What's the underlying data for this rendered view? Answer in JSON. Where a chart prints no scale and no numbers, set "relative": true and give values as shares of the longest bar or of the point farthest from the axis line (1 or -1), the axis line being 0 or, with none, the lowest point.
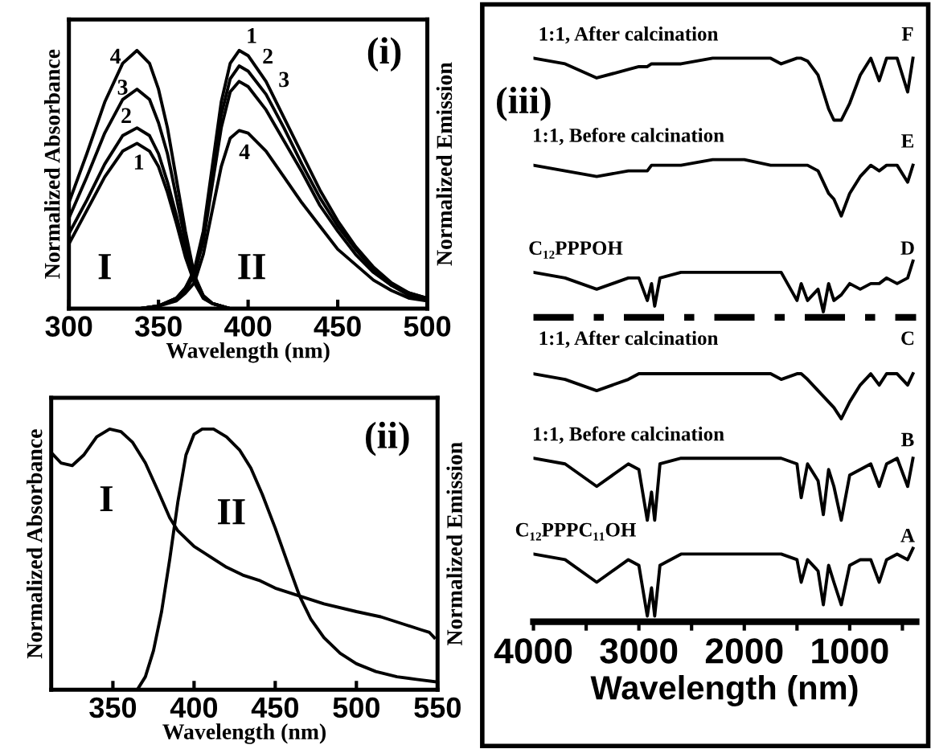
{
  "chart_data": [
    {
      "type": "line",
      "title": "(i)",
      "xlabel": "Wavelength (nm)",
      "ylabel": "Normalized Absorbance",
      "y2label": "Normalized Emission",
      "relative": true,
      "xlim": [
        300,
        500
      ],
      "xticks": [
        300,
        350,
        400,
        450,
        500
      ],
      "series": [
        {
          "color": "#000000",
          "x": [
            300,
            310,
            320,
            330,
            338,
            345,
            350,
            355,
            360,
            365,
            370,
            375,
            380,
            390
          ],
          "values": [
            0.41,
            0.6,
            0.8,
            0.95,
            1.0,
            0.95,
            0.85,
            0.7,
            0.5,
            0.3,
            0.13,
            0.05,
            0.02,
            0.0
          ]
        },
        {
          "color": "#000000",
          "x": [
            300,
            310,
            320,
            330,
            338,
            345,
            350,
            355,
            360,
            365,
            370,
            375,
            380,
            390
          ],
          "values": [
            0.35,
            0.51,
            0.68,
            0.81,
            0.85,
            0.81,
            0.72,
            0.6,
            0.43,
            0.26,
            0.12,
            0.05,
            0.02,
            0.0
          ]
        },
        {
          "color": "#000000",
          "x": [
            300,
            310,
            320,
            330,
            338,
            345,
            350,
            355,
            360,
            365,
            370,
            375,
            380,
            390
          ],
          "values": [
            0.29,
            0.42,
            0.56,
            0.67,
            0.7,
            0.67,
            0.6,
            0.49,
            0.36,
            0.22,
            0.11,
            0.04,
            0.02,
            0.0
          ]
        },
        {
          "color": "#000000",
          "x": [
            300,
            310,
            320,
            330,
            338,
            345,
            350,
            355,
            360,
            365,
            370,
            375,
            380,
            390
          ],
          "values": [
            0.25,
            0.38,
            0.51,
            0.61,
            0.64,
            0.61,
            0.55,
            0.45,
            0.33,
            0.2,
            0.1,
            0.04,
            0.02,
            0.0
          ]
        },
        {
          "color": "#000000",
          "x": [
            340,
            350,
            360,
            365,
            370,
            375,
            380,
            385,
            390,
            395,
            400,
            410,
            420,
            430,
            440,
            450,
            460,
            470,
            480,
            490,
            500
          ],
          "values": [
            0,
            0.01,
            0.04,
            0.08,
            0.15,
            0.3,
            0.55,
            0.8,
            0.95,
            1.0,
            0.98,
            0.88,
            0.74,
            0.6,
            0.46,
            0.34,
            0.24,
            0.16,
            0.1,
            0.06,
            0.04
          ]
        },
        {
          "color": "#000000",
          "x": [
            340,
            350,
            360,
            365,
            370,
            375,
            380,
            385,
            390,
            395,
            400,
            410,
            420,
            430,
            440,
            450,
            460,
            470,
            480,
            490,
            500
          ],
          "values": [
            0,
            0.01,
            0.04,
            0.08,
            0.14,
            0.28,
            0.52,
            0.75,
            0.89,
            0.94,
            0.92,
            0.83,
            0.7,
            0.56,
            0.43,
            0.32,
            0.23,
            0.15,
            0.09,
            0.06,
            0.04
          ]
        },
        {
          "color": "#000000",
          "x": [
            340,
            350,
            360,
            365,
            370,
            375,
            380,
            385,
            390,
            395,
            400,
            410,
            420,
            430,
            440,
            450,
            460,
            470,
            480,
            490,
            500
          ],
          "values": [
            0,
            0.01,
            0.04,
            0.07,
            0.13,
            0.26,
            0.48,
            0.7,
            0.84,
            0.88,
            0.86,
            0.77,
            0.65,
            0.53,
            0.4,
            0.3,
            0.21,
            0.14,
            0.09,
            0.05,
            0.03
          ]
        },
        {
          "color": "#000000",
          "x": [
            340,
            350,
            360,
            365,
            370,
            375,
            380,
            385,
            390,
            395,
            400,
            410,
            420,
            430,
            440,
            450,
            460,
            470,
            480,
            490,
            500
          ],
          "values": [
            0,
            0.01,
            0.03,
            0.06,
            0.1,
            0.21,
            0.38,
            0.55,
            0.66,
            0.69,
            0.68,
            0.61,
            0.51,
            0.41,
            0.32,
            0.23,
            0.17,
            0.11,
            0.07,
            0.04,
            0.03
          ]
        }
      ],
      "annotations": [
        "4",
        "3",
        "2",
        "1",
        "1",
        "2",
        "3",
        "4",
        "I",
        "II"
      ]
    },
    {
      "type": "line",
      "title": "(ii)",
      "xlabel": "Wavelength (nm)",
      "ylabel": "Normalized Absorbance",
      "y2label": "Normalized Emission",
      "relative": true,
      "xlim": [
        312,
        550
      ],
      "xticks": [
        350,
        400,
        450,
        500,
        550
      ],
      "series": [
        {
          "color": "#000000",
          "x": [
            312,
            318,
            325,
            332,
            340,
            348,
            355,
            362,
            370,
            378,
            385,
            390,
            400,
            410,
            420,
            430,
            440,
            450,
            465,
            480,
            500,
            515,
            530,
            540,
            545,
            548
          ],
          "values": [
            0.91,
            0.87,
            0.86,
            0.9,
            0.97,
            1.0,
            0.99,
            0.95,
            0.87,
            0.76,
            0.66,
            0.61,
            0.55,
            0.51,
            0.47,
            0.44,
            0.42,
            0.39,
            0.36,
            0.33,
            0.3,
            0.28,
            0.25,
            0.23,
            0.22,
            0.2
          ]
        },
        {
          "color": "#000000",
          "x": [
            365,
            370,
            375,
            380,
            385,
            390,
            395,
            400,
            405,
            412,
            420,
            428,
            435,
            442,
            450,
            458,
            465,
            472,
            480,
            490,
            500,
            512,
            525,
            537,
            550
          ],
          "values": [
            0,
            0.05,
            0.15,
            0.3,
            0.5,
            0.72,
            0.9,
            0.98,
            1.0,
            1.0,
            0.97,
            0.92,
            0.85,
            0.75,
            0.62,
            0.48,
            0.36,
            0.27,
            0.2,
            0.14,
            0.1,
            0.07,
            0.05,
            0.04,
            0.03
          ]
        }
      ],
      "annotations": [
        "I",
        "II"
      ]
    },
    {
      "type": "line",
      "title": "(iii)",
      "xlabel": "Wavelength (nm)",
      "relative": true,
      "xlim": [
        4000,
        370
      ],
      "xticks": [
        4000,
        3000,
        2000,
        1000,
        {
          "value": 3500,
          "label": null
        },
        {
          "value": 2500,
          "label": null
        },
        {
          "value": 1500,
          "label": null
        },
        {
          "value": 500,
          "label": null
        }
      ],
      "series": [
        {
          "color": "#000000",
          "x": [
            4000,
            3700,
            3400,
            3100,
            3000,
            2920,
            2880,
            2850,
            2800,
            2600,
            2300,
            2000,
            1750,
            1650,
            1500,
            1460,
            1400,
            1300,
            1250,
            1200,
            1150,
            1080,
            1000,
            900,
            800,
            720,
            650,
            550,
            450,
            400
          ],
          "values": [
            1.0,
            0.99,
            0.965,
            0.98,
            0.985,
            0.985,
            0.99,
            0.99,
            0.99,
            0.99,
            1.0,
            1.0,
            1.0,
            0.99,
            1.0,
            1.0,
            0.995,
            0.97,
            0.94,
            0.91,
            0.89,
            0.89,
            0.92,
            0.97,
            1.0,
            0.96,
            1.0,
            1.0,
            0.94,
            1.0
          ]
        },
        {
          "color": "#000000",
          "x": [
            4000,
            3700,
            3400,
            3100,
            3000,
            2920,
            2880,
            2850,
            2800,
            2600,
            2300,
            2000,
            1750,
            1650,
            1500,
            1460,
            1400,
            1300,
            1250,
            1200,
            1150,
            1080,
            1000,
            900,
            800,
            720,
            650,
            550,
            450,
            400
          ],
          "values": [
            0.81,
            0.8,
            0.79,
            0.8,
            0.8,
            0.8,
            0.81,
            0.81,
            0.81,
            0.81,
            0.82,
            0.82,
            0.81,
            0.81,
            0.81,
            0.81,
            0.81,
            0.8,
            0.78,
            0.76,
            0.75,
            0.72,
            0.76,
            0.79,
            0.81,
            0.8,
            0.81,
            0.81,
            0.78,
            0.81
          ]
        },
        {
          "color": "#000000",
          "x": [
            4000,
            3700,
            3400,
            3100,
            3000,
            2920,
            2880,
            2850,
            2800,
            2600,
            2300,
            2000,
            1750,
            1650,
            1500,
            1460,
            1400,
            1300,
            1250,
            1200,
            1150,
            1080,
            1000,
            900,
            800,
            720,
            650,
            550,
            450,
            400
          ],
          "values": [
            0.62,
            0.61,
            0.59,
            0.61,
            0.61,
            0.57,
            0.6,
            0.56,
            0.61,
            0.62,
            0.62,
            0.62,
            0.62,
            0.62,
            0.57,
            0.6,
            0.57,
            0.59,
            0.55,
            0.6,
            0.57,
            0.58,
            0.6,
            0.59,
            0.6,
            0.6,
            0.61,
            0.6,
            0.61,
            0.64
          ]
        },
        {
          "color": "#000000",
          "x": [
            4000,
            3700,
            3400,
            3100,
            3000,
            2920,
            2880,
            2850,
            2800,
            2600,
            2300,
            2000,
            1750,
            1650,
            1500,
            1460,
            1400,
            1300,
            1250,
            1200,
            1150,
            1080,
            1000,
            900,
            800,
            720,
            650,
            550,
            450,
            400
          ],
          "values": [
            0.44,
            0.43,
            0.41,
            0.43,
            0.44,
            0.44,
            0.44,
            0.44,
            0.44,
            0.44,
            0.44,
            0.44,
            0.44,
            0.43,
            0.44,
            0.44,
            0.43,
            0.41,
            0.4,
            0.39,
            0.38,
            0.36,
            0.39,
            0.42,
            0.44,
            0.42,
            0.44,
            0.44,
            0.42,
            0.44
          ]
        },
        {
          "color": "#000000",
          "x": [
            4000,
            3700,
            3400,
            3100,
            3000,
            2920,
            2880,
            2850,
            2800,
            2600,
            2300,
            2000,
            1750,
            1650,
            1500,
            1460,
            1400,
            1300,
            1250,
            1200,
            1150,
            1080,
            1000,
            900,
            800,
            720,
            650,
            550,
            450,
            400
          ],
          "values": [
            0.29,
            0.28,
            0.24,
            0.28,
            0.27,
            0.18,
            0.23,
            0.18,
            0.28,
            0.29,
            0.29,
            0.29,
            0.29,
            0.29,
            0.28,
            0.22,
            0.28,
            0.25,
            0.19,
            0.27,
            0.24,
            0.18,
            0.26,
            0.27,
            0.28,
            0.24,
            0.28,
            0.29,
            0.24,
            0.29
          ]
        },
        {
          "color": "#000000",
          "x": [
            4000,
            3700,
            3400,
            3100,
            3000,
            2920,
            2880,
            2850,
            2800,
            2600,
            2300,
            2000,
            1750,
            1650,
            1500,
            1460,
            1400,
            1300,
            1250,
            1200,
            1150,
            1080,
            1000,
            900,
            800,
            720,
            650,
            550,
            450,
            400
          ],
          "values": [
            0.12,
            0.11,
            0.07,
            0.11,
            0.1,
            0.01,
            0.06,
            0.01,
            0.1,
            0.12,
            0.12,
            0.12,
            0.12,
            0.12,
            0.11,
            0.07,
            0.11,
            0.09,
            0.03,
            0.1,
            0.07,
            0.03,
            0.1,
            0.11,
            0.11,
            0.07,
            0.11,
            0.12,
            0.11,
            0.13
          ]
        }
      ],
      "ref_lines": [
        {
          "axis": "y",
          "value": 0.54,
          "line_style": "dashed",
          "color": "#000000"
        }
      ],
      "annotations": [
        "1:1, After calcination",
        "F",
        "1:1, Before calcination",
        "E",
        "C₁₂PPPOH",
        "D",
        "1:1, After calcination",
        "C",
        "1:1, Before calcination",
        "B",
        "C₁₂PPPC₁₁OH",
        "A"
      ]
    }
  ]
}
